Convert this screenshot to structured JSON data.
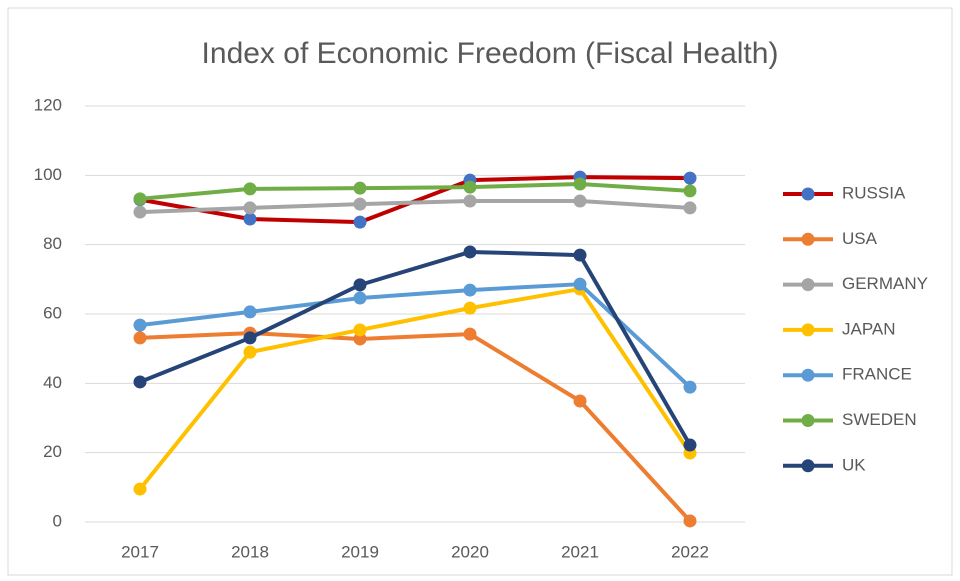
{
  "chart_data": {
    "type": "line",
    "title": "Index of Economic Freedom (Fiscal Health)",
    "categories": [
      "2017",
      "2018",
      "2019",
      "2020",
      "2021",
      "2022"
    ],
    "series": [
      {
        "name": "RUSSIA",
        "color": "#c00000",
        "marker_color": "#4472c4",
        "values": [
          93,
          87.4,
          86.5,
          98.6,
          99.5,
          99.2
        ]
      },
      {
        "name": "USA",
        "color": "#ed7d31",
        "values": [
          53.1,
          54.5,
          52.8,
          54.2,
          34.9,
          0.3
        ]
      },
      {
        "name": "GERMANY",
        "color": "#a5a5a5",
        "values": [
          89.4,
          90.6,
          91.7,
          92.6,
          92.6,
          90.6
        ]
      },
      {
        "name": "JAPAN",
        "color": "#ffc000",
        "values": [
          9.5,
          49,
          55.4,
          61.7,
          67.2,
          19.9
        ]
      },
      {
        "name": "FRANCE",
        "color": "#5b9bd5",
        "values": [
          56.8,
          60.6,
          64.6,
          66.9,
          68.6,
          38.9
        ]
      },
      {
        "name": "SWEDEN",
        "color": "#70ad47",
        "values": [
          93.2,
          96.1,
          96.3,
          96.6,
          97.5,
          95.5
        ]
      },
      {
        "name": "UK",
        "color": "#264478",
        "values": [
          40.4,
          53.1,
          68.4,
          77.9,
          77,
          22.2
        ]
      }
    ],
    "ylim": [
      0,
      120
    ],
    "yticks": [
      0,
      20,
      40,
      60,
      80,
      100,
      120
    ],
    "grid": true,
    "legend": "right"
  }
}
